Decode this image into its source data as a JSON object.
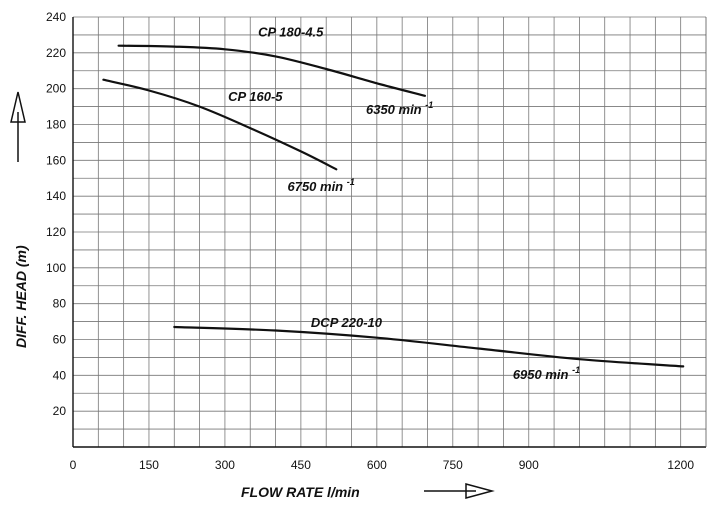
{
  "chart_data": {
    "type": "line",
    "xlabel": "FLOW RATE l/min",
    "ylabel": "DIFF. HEAD  (m)",
    "xlim": [
      0,
      1250
    ],
    "ylim": [
      0,
      240
    ],
    "x_ticks": [
      "0",
      "150",
      "300",
      "450",
      "600",
      "750",
      "900",
      "1200"
    ],
    "x_tick_values": [
      0,
      150,
      300,
      450,
      600,
      750,
      900,
      1200
    ],
    "y_ticks": [
      "20",
      "40",
      "60",
      "80",
      "100",
      "120",
      "140",
      "160",
      "180",
      "200",
      "220",
      "240"
    ],
    "y_tick_values": [
      20,
      40,
      60,
      80,
      100,
      120,
      140,
      160,
      180,
      200,
      220,
      240
    ],
    "grid": true,
    "series": [
      {
        "name": "CP 180-4.5",
        "speed_label": "6350 min",
        "speed_sup": "-1",
        "points": [
          [
            90,
            224
          ],
          [
            200,
            223.5
          ],
          [
            300,
            222
          ],
          [
            400,
            218
          ],
          [
            500,
            211
          ],
          [
            600,
            203
          ],
          [
            695,
            196
          ]
        ]
      },
      {
        "name": "CP 160-5",
        "speed_label": "6750 min",
        "speed_sup": "-1",
        "points": [
          [
            60,
            205
          ],
          [
            150,
            199
          ],
          [
            250,
            190
          ],
          [
            350,
            178
          ],
          [
            450,
            165
          ],
          [
            520,
            155
          ]
        ]
      },
      {
        "name": "DCP 220-10",
        "speed_label": "6950 min",
        "speed_sup": "-1",
        "points": [
          [
            200,
            67
          ],
          [
            400,
            65
          ],
          [
            600,
            61
          ],
          [
            800,
            55
          ],
          [
            1000,
            49
          ],
          [
            1205,
            45
          ]
        ]
      }
    ]
  }
}
